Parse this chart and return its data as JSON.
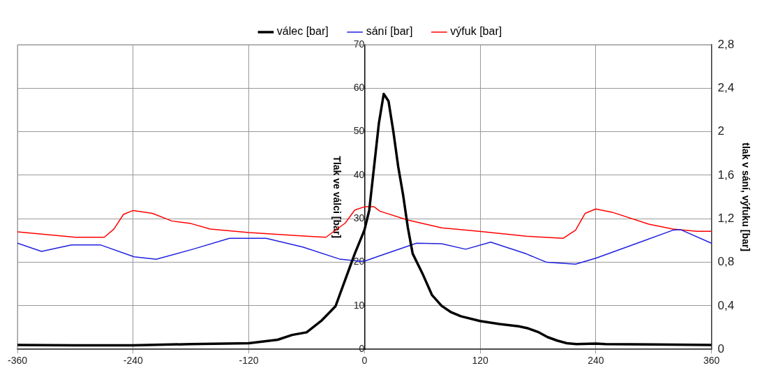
{
  "chart_data": {
    "type": "line",
    "ylabel": "Tlak ve válci [bar]",
    "y2label": "tlak v sání, výfuku [bar]",
    "xlim": [
      -360,
      360
    ],
    "xticks": [
      -360,
      -240,
      -120,
      0,
      120,
      240,
      360
    ],
    "ylim": [
      0,
      70
    ],
    "yticks": [
      0,
      10,
      20,
      30,
      40,
      50,
      60,
      70
    ],
    "y2lim": [
      0,
      2.8
    ],
    "y2ticks": [
      0,
      {
        "value": 0.4,
        "label": "0,4"
      },
      {
        "value": 0.8,
        "label": "0,8"
      },
      {
        "value": 1.2,
        "label": "1,2"
      },
      {
        "value": 1.6,
        "label": "1,6"
      },
      {
        "value": 2,
        "label": "2"
      },
      {
        "value": 2.4,
        "label": "2,4"
      },
      {
        "value": 2.8,
        "label": "2,8"
      }
    ],
    "grid": true,
    "legend": "top",
    "marker": "none",
    "line_style": "solid",
    "series": [
      {
        "name": "válec [bar]",
        "color": "#000000",
        "x": [
          -360,
          -300,
          -240,
          -180,
          -120,
          -90,
          -75,
          -60,
          -45,
          -30,
          -15,
          -10,
          0,
          5,
          10,
          15,
          20,
          25,
          30,
          35,
          40,
          45,
          50,
          60,
          70,
          80,
          90,
          100,
          120,
          140,
          160,
          170,
          180,
          190,
          200,
          210,
          220,
          240,
          250,
          300,
          360
        ],
        "values": [
          1.0,
          0.9,
          0.9,
          1.2,
          1.4,
          2.2,
          3.3,
          3.9,
          6.5,
          9.9,
          19,
          22,
          27.4,
          32,
          42,
          52,
          58.7,
          57,
          50,
          42,
          35.6,
          28,
          22,
          17.5,
          12.5,
          10,
          8.5,
          7.6,
          6.5,
          5.8,
          5.3,
          4.8,
          4,
          2.8,
          2,
          1.4,
          1.2,
          1.3,
          1.2,
          1.1,
          1.0
        ]
      },
      {
        "name": "sání [bar]",
        "color": "#2020e0",
        "axis": "y2",
        "x": [
          -360,
          -335,
          -304,
          -274,
          -239,
          -216,
          -178,
          -140,
          -102,
          -64,
          -26,
          -6,
          0,
          16,
          54,
          80,
          105,
          131,
          168,
          189,
          219,
          240,
          286,
          320,
          328,
          360
        ],
        "values": [
          0.975,
          0.9,
          0.96,
          0.96,
          0.85,
          0.828,
          0.92,
          1.02,
          1.02,
          0.94,
          0.83,
          0.81,
          0.81,
          0.86,
          0.975,
          0.97,
          0.92,
          0.985,
          0.877,
          0.8,
          0.783,
          0.837,
          0.985,
          1.095,
          1.1,
          0.975
        ]
      },
      {
        "name": "výfuk [bar]",
        "color": "#ff0000",
        "axis": "y2",
        "x": [
          -360,
          -300,
          -270,
          -260,
          -250,
          -240,
          -220,
          -200,
          -180,
          -160,
          -120,
          -60,
          -40,
          -20,
          -10,
          0,
          10,
          16,
          44,
          80,
          119,
          168,
          206,
          219,
          229,
          240,
          257,
          295,
          320,
          345,
          360
        ],
        "values": [
          1.08,
          1.03,
          1.03,
          1.105,
          1.24,
          1.276,
          1.25,
          1.18,
          1.156,
          1.105,
          1.073,
          1.04,
          1.03,
          1.16,
          1.28,
          1.31,
          1.31,
          1.27,
          1.19,
          1.117,
          1.085,
          1.04,
          1.02,
          1.095,
          1.25,
          1.29,
          1.26,
          1.15,
          1.105,
          1.085,
          1.085
        ]
      }
    ]
  }
}
